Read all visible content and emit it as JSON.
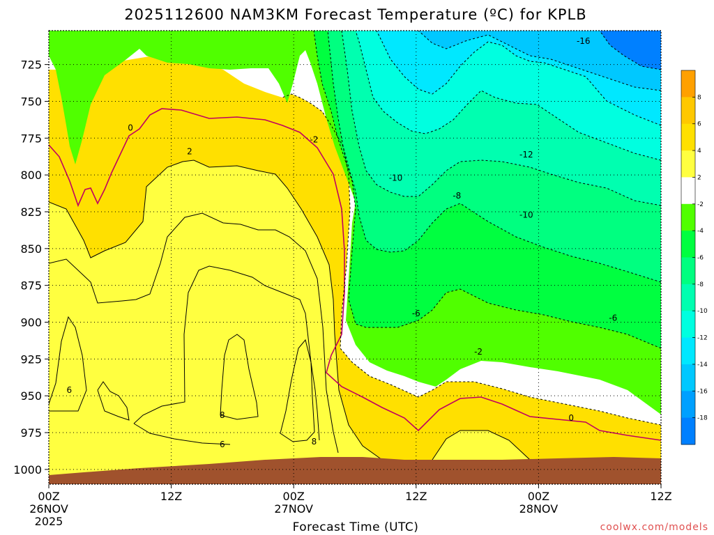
{
  "chart_data": {
    "type": "heatmap",
    "title": "2025112600 NAM3KM Forecast Temperature (ºC) for KPLB",
    "xlabel": "Forecast Time (UTC)",
    "credit": "coolwx.com/models",
    "xlim_hours": [
      0,
      60
    ],
    "ylim_hpa": [
      1010,
      702
    ],
    "x_ticks": [
      {
        "hour": 0,
        "label": "00Z",
        "date": "26NOV",
        "year": "2025"
      },
      {
        "hour": 12,
        "label": "12Z",
        "date": "",
        "year": ""
      },
      {
        "hour": 24,
        "label": "00Z",
        "date": "27NOV",
        "year": ""
      },
      {
        "hour": 36,
        "label": "12Z",
        "date": "",
        "year": ""
      },
      {
        "hour": 48,
        "label": "00Z",
        "date": "28NOV",
        "year": ""
      },
      {
        "hour": 60,
        "label": "12Z",
        "date": "",
        "year": ""
      }
    ],
    "y_ticks": [
      725,
      750,
      775,
      800,
      825,
      850,
      875,
      900,
      925,
      950,
      975,
      1000
    ],
    "colorbar": {
      "labels": [
        "8",
        "6",
        "4",
        "2",
        "-2",
        "-4",
        "-6",
        "-8",
        "-10",
        "-12",
        "-14",
        "-16",
        "-18"
      ],
      "label_values": [
        8,
        6,
        4,
        2,
        -2,
        -4,
        -6,
        -8,
        -10,
        -12,
        -14,
        -16,
        -18
      ],
      "band_colors": [
        "#ffa000",
        "#ffc800",
        "#ffe000",
        "#ffff40",
        "#ffffff",
        "#50ff00",
        "#00ff40",
        "#00ff80",
        "#00ffb0",
        "#00ffe0",
        "#00e8ff",
        "#00c8ff",
        "#00a0ff",
        "#0080ff"
      ]
    },
    "contour_labels": [
      {
        "text": "0",
        "hour": 8.0,
        "hpa": 770
      },
      {
        "text": "2",
        "hour": 13.8,
        "hpa": 786
      },
      {
        "text": "-2",
        "hour": 26.0,
        "hpa": 778
      },
      {
        "text": "-10",
        "hour": 34.0,
        "hpa": 804
      },
      {
        "text": "-8",
        "hour": 40.0,
        "hpa": 816
      },
      {
        "text": "-10",
        "hour": 46.8,
        "hpa": 829
      },
      {
        "text": "-12",
        "hour": 46.8,
        "hpa": 788
      },
      {
        "text": "-16",
        "hour": 52.4,
        "hpa": 711
      },
      {
        "text": "-6",
        "hour": 36.0,
        "hpa": 896
      },
      {
        "text": "-6",
        "hour": 55.3,
        "hpa": 899
      },
      {
        "text": "-2",
        "hour": 42.1,
        "hpa": 922
      },
      {
        "text": "0",
        "hour": 51.2,
        "hpa": 967
      },
      {
        "text": "6",
        "hour": 2.0,
        "hpa": 948
      },
      {
        "text": "8",
        "hour": 17.0,
        "hpa": 965
      },
      {
        "text": "6",
        "hour": 17.0,
        "hpa": 985
      },
      {
        "text": "8",
        "hour": 26.0,
        "hpa": 983
      }
    ],
    "regions": [
      {
        "band": "cold",
        "color": "#0080ff",
        "hpa_range": [
          702,
          760
        ],
        "hour_range": [
          50,
          60
        ]
      },
      {
        "band": "cold",
        "color": "#00a0ff",
        "hpa_range": [
          702,
          790
        ],
        "hour_range": [
          46,
          60
        ]
      },
      {
        "band": "cold",
        "color": "#00e8ff",
        "hpa_range": [
          702,
          800
        ],
        "hour_range": [
          40,
          60
        ]
      },
      {
        "band": "warm",
        "color": "#ffa000",
        "hpa_range": [
          905,
          975
        ],
        "hour_range": [
          16,
          27
        ]
      }
    ]
  }
}
